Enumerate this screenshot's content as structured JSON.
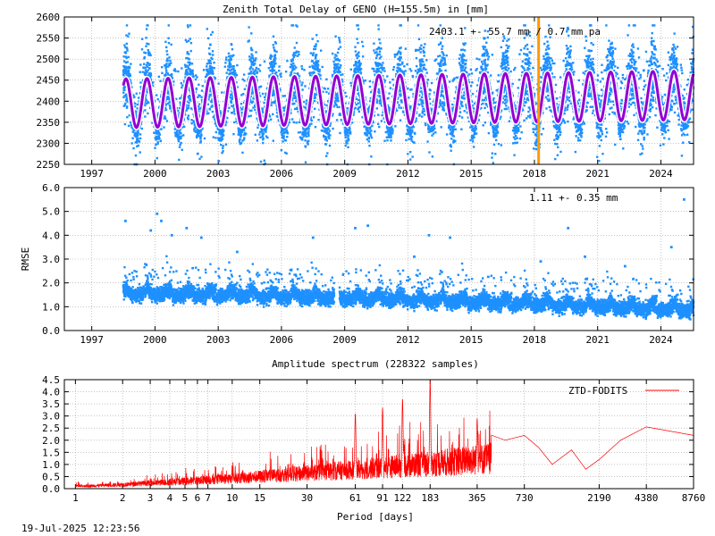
{
  "title": "Zenith Total Delay of GENO (H=155.5m) in [mm]",
  "timestamp": "19-Jul-2025 12:23:56",
  "colors": {
    "data_blue": "#1e90ff",
    "model_purple": "#9400d3",
    "model_white": "#ffffff",
    "event_orange": "#ff9900",
    "spectrum_red": "#ff0000",
    "grid": "#a0a0a0"
  },
  "chart_data": [
    {
      "id": "ztd",
      "type": "scatter",
      "title": "Zenith Total Delay of GENO (H=155.5m) in [mm]",
      "ylabel": "",
      "annotation": "2403.1 +-  55.7 mm /  0.7 mm pa",
      "xlim": [
        1995.7,
        2025.55
      ],
      "ylim": [
        2250,
        2600
      ],
      "xticks": [
        1997,
        2000,
        2003,
        2006,
        2009,
        2012,
        2015,
        2018,
        2021,
        2024
      ],
      "yticks": [
        2250,
        2300,
        2350,
        2400,
        2450,
        2500,
        2550,
        2600
      ],
      "grid": true,
      "data_start": 1998.5,
      "data_end": 2025.55,
      "mean": 2403.1,
      "amplitude_annual": 55.7,
      "trend_per_year": 0.7,
      "model_annual_amplitude": 58,
      "model_phase_peak": 0.62,
      "event_line_x": 2018.2
    },
    {
      "id": "rmse",
      "type": "scatter",
      "title": "",
      "ylabel": "RMSE",
      "annotation": "1.11 +-  0.35 mm",
      "xlim": [
        1995.7,
        2025.55
      ],
      "ylim": [
        0.0,
        6.0
      ],
      "xticks": [
        1997,
        2000,
        2003,
        2006,
        2009,
        2012,
        2015,
        2018,
        2021,
        2024
      ],
      "yticks": [
        "0.0",
        "1.0",
        "2.0",
        "3.0",
        "4.0",
        "5.0",
        "6.0"
      ],
      "grid": true,
      "data_start": 1998.5,
      "data_end": 2025.55,
      "gap": [
        2008.5,
        2008.75
      ],
      "mean_early": 1.5,
      "mean_late": 0.8,
      "outliers": [
        [
          1998.6,
          4.6
        ],
        [
          1999.8,
          4.2
        ],
        [
          2000.1,
          4.9
        ],
        [
          2000.3,
          4.6
        ],
        [
          2000.8,
          4.0
        ],
        [
          2001.5,
          4.3
        ],
        [
          2002.2,
          3.9
        ],
        [
          2003.9,
          3.3
        ],
        [
          2007.5,
          3.9
        ],
        [
          2009.5,
          4.3
        ],
        [
          2010.1,
          4.4
        ],
        [
          2012.3,
          3.1
        ],
        [
          2013.0,
          4.0
        ],
        [
          2014.0,
          3.9
        ],
        [
          2018.3,
          2.9
        ],
        [
          2019.6,
          4.3
        ],
        [
          2020.4,
          3.1
        ],
        [
          2022.3,
          2.7
        ],
        [
          2024.5,
          3.5
        ],
        [
          2025.1,
          5.5
        ]
      ]
    },
    {
      "id": "spectrum",
      "type": "line",
      "title": "Amplitude spectrum (228322 samples)",
      "xlabel": "Period [days]",
      "ylabel": "",
      "xscale": "log",
      "xlim": [
        0.85,
        8760
      ],
      "ylim": [
        0.0,
        4.5
      ],
      "xticks": [
        "1",
        "2",
        "3",
        "4",
        "5",
        "6",
        "7",
        "10",
        "15",
        "30",
        "61",
        "91",
        "122",
        "183",
        "365",
        "730",
        "2190",
        "4380",
        "8760"
      ],
      "yticks": [
        "0.0",
        "0.5",
        "1.0",
        "1.5",
        "2.0",
        "2.5",
        "3.0",
        "3.5",
        "4.0",
        "4.5"
      ],
      "grid": true,
      "legend": "top-right",
      "series": [
        {
          "name": "ZTD-FODITS",
          "peaks": [
            [
              183,
              4.45
            ],
            [
              122,
              3.7
            ],
            [
              91,
              3.35
            ],
            [
              61,
              3.1
            ],
            [
              365,
              2.9
            ],
            [
              730,
              2.3
            ]
          ],
          "tail": [
            [
              550,
              2.0
            ],
            [
              730,
              2.2
            ],
            [
              900,
              1.7
            ],
            [
              1100,
              1.0
            ],
            [
              1460,
              1.6
            ],
            [
              1800,
              0.8
            ],
            [
              2190,
              1.2
            ],
            [
              3000,
              2.0
            ],
            [
              4380,
              2.55
            ],
            [
              8760,
              2.2
            ]
          ]
        }
      ]
    }
  ]
}
